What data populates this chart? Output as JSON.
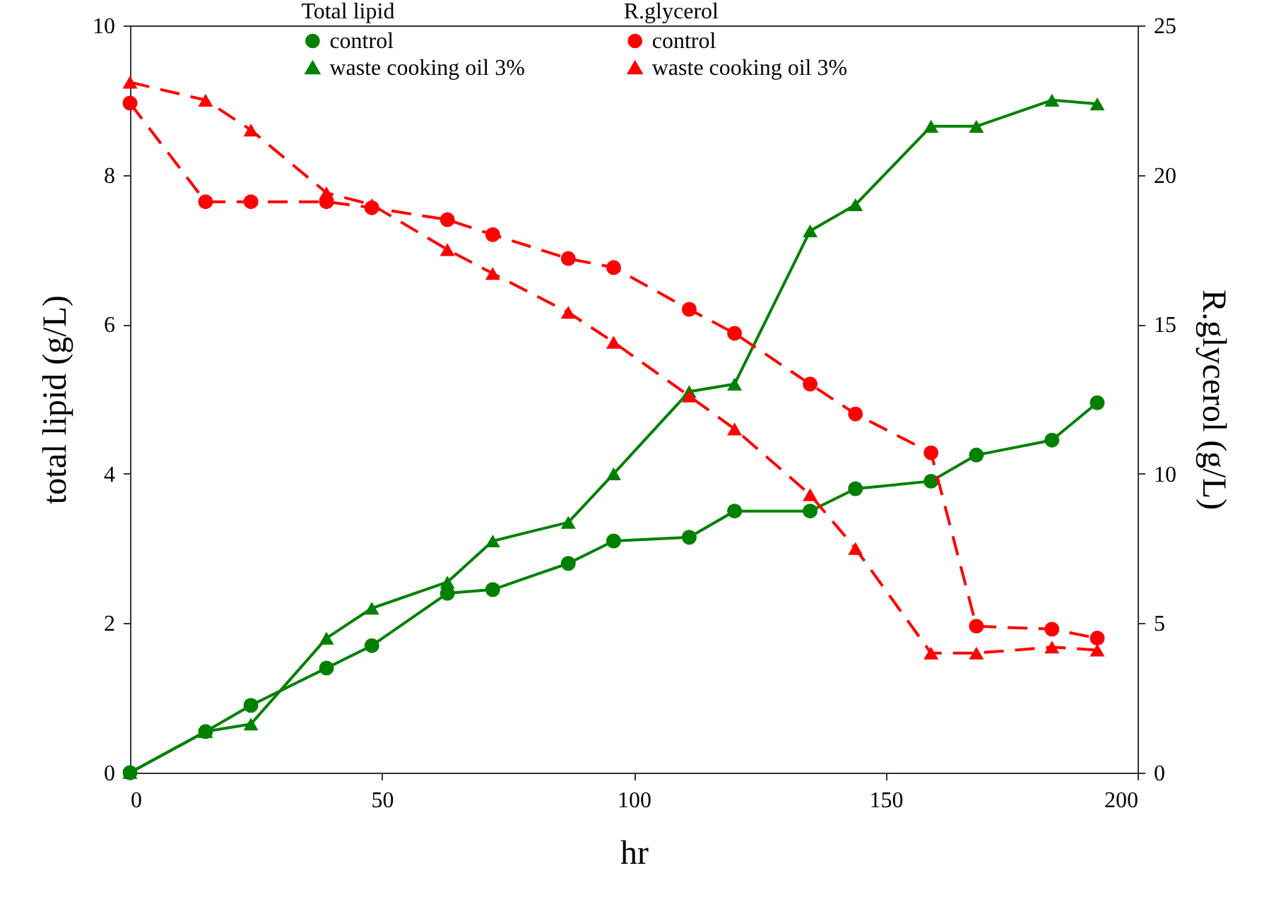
{
  "chart_data": {
    "type": "line",
    "xlabel": "hr",
    "ylabel": "total lipid (g/L)",
    "y2label": "R.glycerol (g/L)",
    "legend_title": [
      "Total lipid",
      "R.glycerol"
    ],
    "legend": "top",
    "grid": false,
    "x": [
      0,
      15,
      24,
      39,
      48,
      63,
      72,
      87,
      96,
      111,
      120,
      135,
      144,
      159,
      168,
      183,
      192
    ],
    "xlim": [
      0,
      200
    ],
    "xticks": [
      0,
      50,
      100,
      150,
      200
    ],
    "ylim": [
      0,
      10
    ],
    "yticks": [
      0,
      2,
      4,
      6,
      8,
      10
    ],
    "y2lim": [
      0,
      25
    ],
    "y2ticks": [
      0,
      5,
      10,
      15,
      20,
      25
    ],
    "series": [
      {
        "name": "control",
        "color": "#008000",
        "marker": "circle",
        "line_style": "solid",
        "values": [
          0,
          0.55,
          0.9,
          1.4,
          1.7,
          2.4,
          2.45,
          2.8,
          3.1,
          3.15,
          3.5,
          3.5,
          3.8,
          3.9,
          4.25,
          4.45,
          4.95
        ]
      },
      {
        "name": "waste cooking oil 3%",
        "color": "#008000",
        "marker": "triangle",
        "line_style": "solid",
        "values": [
          0,
          0.55,
          0.65,
          1.8,
          2.2,
          2.55,
          3.1,
          3.35,
          4.0,
          5.1,
          5.2,
          7.25,
          7.6,
          8.65,
          8.65,
          9.0,
          8.95
        ]
      },
      {
        "name": "control",
        "color": "#ff0000",
        "marker": "circle",
        "line_style": "dashed",
        "axis": "y2",
        "values": [
          22.4,
          19.1,
          19.1,
          19.1,
          18.9,
          18.5,
          18.0,
          17.2,
          16.9,
          15.5,
          14.7,
          13.0,
          12.0,
          10.7,
          4.9,
          4.8,
          4.5
        ]
      },
      {
        "name": "waste cooking oil 3%",
        "color": "#ff0000",
        "marker": "triangle",
        "line_style": "dashed",
        "axis": "y2",
        "values": [
          23.1,
          22.5,
          21.5,
          19.4,
          19.0,
          17.5,
          16.7,
          15.4,
          14.4,
          12.6,
          11.5,
          9.3,
          7.5,
          4.0,
          4.0,
          4.2,
          4.1
        ]
      }
    ]
  }
}
